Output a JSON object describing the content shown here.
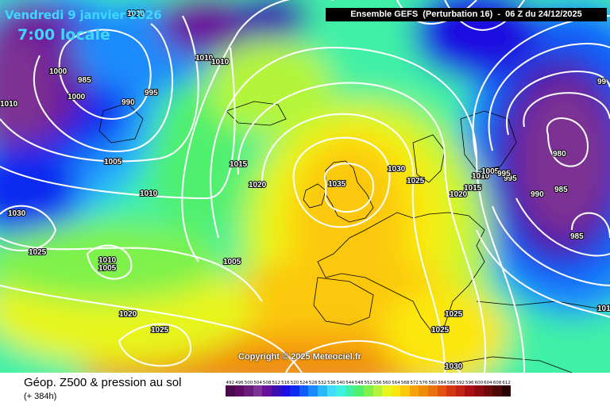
{
  "header": {
    "date_line": "Vendredi 9 janvier 2026",
    "time_line": "7:00 locale",
    "run_info": "Ensemble GEFS  (Perturbation 16)  -  06 Z du 24/12/2025"
  },
  "copyright": "Copyright © 2025 Meteociel.fr",
  "footer": {
    "title": "Géop. Z500 & pression au sol",
    "subtitle": "(+ 384h)"
  },
  "scale": {
    "labels": [
      "492",
      "496",
      "500",
      "504",
      "508",
      "512",
      "516",
      "520",
      "524",
      "528",
      "532",
      "536",
      "540",
      "544",
      "548",
      "552",
      "556",
      "560",
      "564",
      "568",
      "572",
      "576",
      "580",
      "584",
      "588",
      "592",
      "596",
      "600",
      "604",
      "608",
      "612"
    ],
    "colors": [
      "#4b0b4b",
      "#5c0a63",
      "#6a1c7c",
      "#7d3393",
      "#6a0f9c",
      "#3d0db0",
      "#1c0de0",
      "#0b2cf0",
      "#0f5cf8",
      "#1b8bfb",
      "#2bb8fb",
      "#41dcfa",
      "#3ff2e0",
      "#3ff0a6",
      "#4ff06e",
      "#7ef24b",
      "#b4f53b",
      "#e7f51c",
      "#fbe70f",
      "#fbc80a",
      "#f6a20a",
      "#ef8d0a",
      "#ea720e",
      "#e25310",
      "#d23712",
      "#c22214",
      "#a81014",
      "#8c0a12",
      "#6e0a0e",
      "#4e0808",
      "#2a0404"
    ]
  },
  "isobars": [
    {
      "value": "1000",
      "id": "p1"
    },
    {
      "value": "985",
      "id": "p2"
    },
    {
      "value": "1000",
      "id": "p3"
    },
    {
      "value": "990",
      "id": "p4"
    },
    {
      "value": "995",
      "id": "p5"
    },
    {
      "value": "1010",
      "id": "p6"
    },
    {
      "value": "1010",
      "id": "p7"
    },
    {
      "value": "1005",
      "id": "p8"
    },
    {
      "value": "1010",
      "id": "p9"
    },
    {
      "value": "1015",
      "id": "p10"
    },
    {
      "value": "1020",
      "id": "p11"
    },
    {
      "value": "1035",
      "id": "p12"
    },
    {
      "value": "1030",
      "id": "p13"
    },
    {
      "value": "1025",
      "id": "p14"
    },
    {
      "value": "1010",
      "id": "p15"
    },
    {
      "value": "1005",
      "id": "p16"
    },
    {
      "value": "995",
      "id": "p17"
    },
    {
      "value": "1015",
      "id": "p18"
    },
    {
      "value": "1020",
      "id": "p19"
    },
    {
      "value": "980",
      "id": "p20"
    },
    {
      "value": "985",
      "id": "p21"
    },
    {
      "value": "990",
      "id": "p22"
    },
    {
      "value": "995",
      "id": "p23"
    },
    {
      "value": "985",
      "id": "p24"
    },
    {
      "value": "1030",
      "id": "p25"
    },
    {
      "value": "1025",
      "id": "p26"
    },
    {
      "value": "1010",
      "id": "p27"
    },
    {
      "value": "1005",
      "id": "p28"
    },
    {
      "value": "1005",
      "id": "p29"
    },
    {
      "value": "1020",
      "id": "p30"
    },
    {
      "value": "1025",
      "id": "p31"
    },
    {
      "value": "1025",
      "id": "p32"
    },
    {
      "value": "1025",
      "id": "p33"
    },
    {
      "value": "1030",
      "id": "p34"
    },
    {
      "value": "1010",
      "id": "p35"
    },
    {
      "value": "1010",
      "id": "p36"
    },
    {
      "value": "101",
      "id": "p37"
    },
    {
      "value": "99",
      "id": "p38"
    }
  ]
}
